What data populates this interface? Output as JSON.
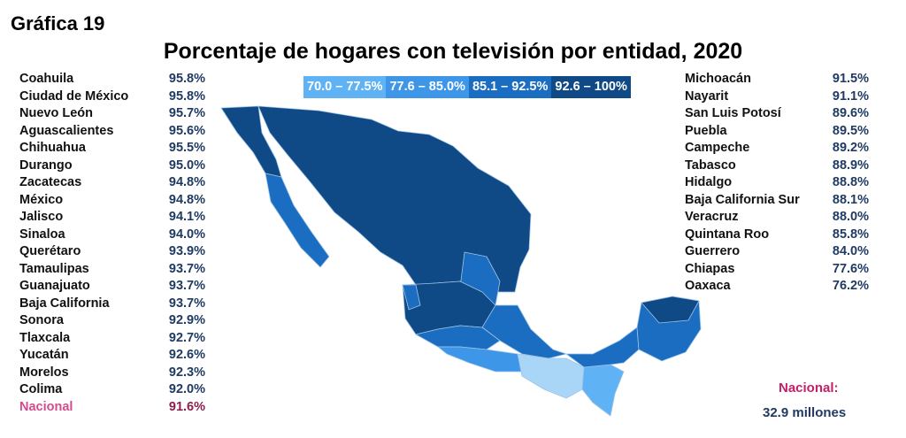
{
  "label": "Gráfica 19",
  "title": "Porcentaje de hogares con televisión por entidad, 2020",
  "legend": [
    {
      "range": "70.0 – 77.5%",
      "color": "#5fb3f5"
    },
    {
      "range": "77.6 – 85.0%",
      "color": "#3d96e8"
    },
    {
      "range": "85.1 – 92.5%",
      "color": "#1a6dc0"
    },
    {
      "range": "92.6 – 100%",
      "color": "#0f4a86"
    }
  ],
  "left_list": [
    {
      "state": "Coahuila",
      "value": "95.8%"
    },
    {
      "state": "Ciudad de México",
      "value": "95.8%"
    },
    {
      "state": "Nuevo León",
      "value": "95.7%"
    },
    {
      "state": "Aguascalientes",
      "value": "95.6%"
    },
    {
      "state": "Chihuahua",
      "value": "95.5%"
    },
    {
      "state": "Durango",
      "value": "95.0%"
    },
    {
      "state": "Zacatecas",
      "value": "94.8%"
    },
    {
      "state": "México",
      "value": "94.8%"
    },
    {
      "state": "Jalisco",
      "value": "94.1%"
    },
    {
      "state": "Sinaloa",
      "value": "94.0%"
    },
    {
      "state": "Querétaro",
      "value": "93.9%"
    },
    {
      "state": "Tamaulipas",
      "value": "93.7%"
    },
    {
      "state": "Guanajuato",
      "value": "93.7%"
    },
    {
      "state": "Baja California",
      "value": "93.7%"
    },
    {
      "state": "Sonora",
      "value": "92.9%"
    },
    {
      "state": "Tlaxcala",
      "value": "92.7%"
    },
    {
      "state": "Yucatán",
      "value": "92.6%"
    },
    {
      "state": "Morelos",
      "value": "92.3%"
    },
    {
      "state": "Colima",
      "value": "92.0%"
    },
    {
      "state": "Nacional",
      "value": "91.6%"
    }
  ],
  "right_list": [
    {
      "state": "Michoacán",
      "value": "91.5%"
    },
    {
      "state": "Nayarit",
      "value": "91.1%"
    },
    {
      "state": "San Luis Potosí",
      "value": "89.6%"
    },
    {
      "state": "Puebla",
      "value": "89.5%"
    },
    {
      "state": "Campeche",
      "value": "89.2%"
    },
    {
      "state": "Tabasco",
      "value": "88.9%"
    },
    {
      "state": "Hidalgo",
      "value": "88.8%"
    },
    {
      "state": "Baja California Sur",
      "value": "88.1%"
    },
    {
      "state": "Veracruz",
      "value": "88.0%"
    },
    {
      "state": "Quintana Roo",
      "value": "85.8%"
    },
    {
      "state": "Guerrero",
      "value": "84.0%"
    },
    {
      "state": "Chiapas",
      "value": "77.6%"
    },
    {
      "state": "Oaxaca",
      "value": "76.2%"
    }
  ],
  "national": {
    "label": "Nacional:",
    "households": "32.9 millones"
  }
}
